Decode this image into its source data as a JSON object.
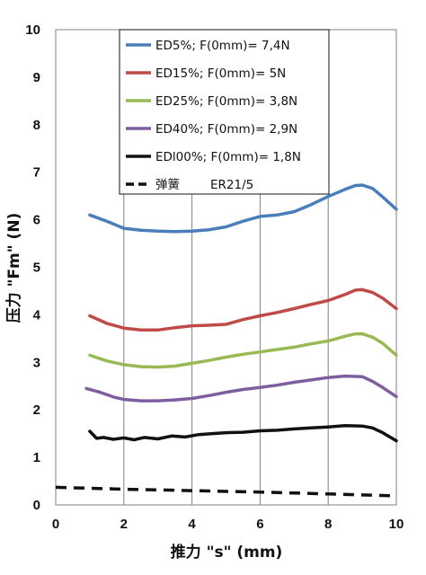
{
  "chart_data": {
    "type": "line",
    "xlabel": "推力 \"s\" (mm)",
    "ylabel": "压力 \"Fm\" (N)",
    "xlim": [
      0,
      10
    ],
    "ylim": [
      0,
      10
    ],
    "xticks": [
      "0",
      "2",
      "4",
      "6",
      "8",
      "10"
    ],
    "yticks": [
      "0",
      "1",
      "2",
      "3",
      "4",
      "5",
      "6",
      "7",
      "8",
      "9",
      "10"
    ],
    "grid": "vertical",
    "legend_position": "top-center",
    "series": [
      {
        "name": "ED5%; F(0mm)= 7,4N",
        "color": "#4a7ebb",
        "dash": false,
        "x": [
          1.0,
          1.5,
          2.0,
          2.5,
          3.0,
          3.5,
          4.0,
          4.5,
          5.0,
          5.5,
          6.0,
          6.5,
          7.0,
          7.5,
          8.0,
          8.5,
          8.8,
          9.0,
          9.3,
          9.6,
          10.0
        ],
        "y": [
          6.1,
          5.97,
          5.82,
          5.78,
          5.76,
          5.75,
          5.76,
          5.79,
          5.85,
          5.97,
          6.07,
          6.1,
          6.17,
          6.32,
          6.49,
          6.64,
          6.72,
          6.73,
          6.66,
          6.48,
          6.22
        ]
      },
      {
        "name": "ED15%; F(0mm)= 5N",
        "color": "#be4b48",
        "dash": false,
        "x": [
          1.0,
          1.5,
          2.0,
          2.5,
          3.0,
          3.5,
          4.0,
          4.5,
          5.0,
          5.5,
          6.0,
          6.5,
          7.0,
          7.5,
          8.0,
          8.5,
          8.8,
          9.0,
          9.3,
          9.6,
          10.0
        ],
        "y": [
          3.98,
          3.82,
          3.72,
          3.68,
          3.68,
          3.73,
          3.77,
          3.78,
          3.8,
          3.9,
          3.98,
          4.05,
          4.13,
          4.22,
          4.3,
          4.43,
          4.52,
          4.53,
          4.47,
          4.35,
          4.13
        ]
      },
      {
        "name": "ED25%; F(0mm)= 3,8N",
        "color": "#98b954",
        "dash": false,
        "x": [
          1.0,
          1.5,
          2.0,
          2.5,
          3.0,
          3.5,
          4.0,
          4.5,
          5.0,
          5.5,
          6.0,
          6.5,
          7.0,
          7.5,
          8.0,
          8.5,
          8.8,
          9.0,
          9.3,
          9.6,
          10.0
        ],
        "y": [
          3.15,
          3.03,
          2.95,
          2.91,
          2.9,
          2.92,
          2.98,
          3.04,
          3.11,
          3.17,
          3.22,
          3.27,
          3.32,
          3.39,
          3.45,
          3.55,
          3.6,
          3.6,
          3.53,
          3.4,
          3.15
        ]
      },
      {
        "name": "ED40%; F(0mm)= 2,9N",
        "color": "#7d5fa0",
        "dash": false,
        "x": [
          0.9,
          1.3,
          1.7,
          2.0,
          2.5,
          3.0,
          3.5,
          4.0,
          4.5,
          5.0,
          5.5,
          6.0,
          6.5,
          7.0,
          7.5,
          8.0,
          8.5,
          9.0,
          9.3,
          9.6,
          10.0
        ],
        "y": [
          2.45,
          2.37,
          2.27,
          2.22,
          2.19,
          2.19,
          2.21,
          2.24,
          2.3,
          2.37,
          2.43,
          2.47,
          2.52,
          2.58,
          2.63,
          2.68,
          2.71,
          2.7,
          2.6,
          2.47,
          2.28
        ]
      },
      {
        "name": "EDl00%; F(0mm)= 1,8N",
        "color": "#111111",
        "dash": false,
        "x": [
          1.0,
          1.2,
          1.4,
          1.7,
          2.0,
          2.3,
          2.6,
          3.0,
          3.4,
          3.8,
          4.2,
          4.6,
          5.0,
          5.5,
          6.0,
          6.5,
          7.0,
          7.5,
          8.0,
          8.5,
          9.0,
          9.3,
          9.6,
          10.0
        ],
        "y": [
          1.55,
          1.4,
          1.42,
          1.38,
          1.41,
          1.37,
          1.42,
          1.39,
          1.45,
          1.43,
          1.48,
          1.5,
          1.52,
          1.53,
          1.56,
          1.57,
          1.6,
          1.62,
          1.64,
          1.67,
          1.66,
          1.62,
          1.52,
          1.35
        ]
      },
      {
        "name": "弹簧",
        "extra_label": "ER21/5",
        "color": "#111111",
        "dash": true,
        "x": [
          0,
          2,
          4,
          6,
          8,
          10
        ],
        "y": [
          0.37,
          0.33,
          0.3,
          0.27,
          0.23,
          0.19
        ]
      }
    ]
  }
}
